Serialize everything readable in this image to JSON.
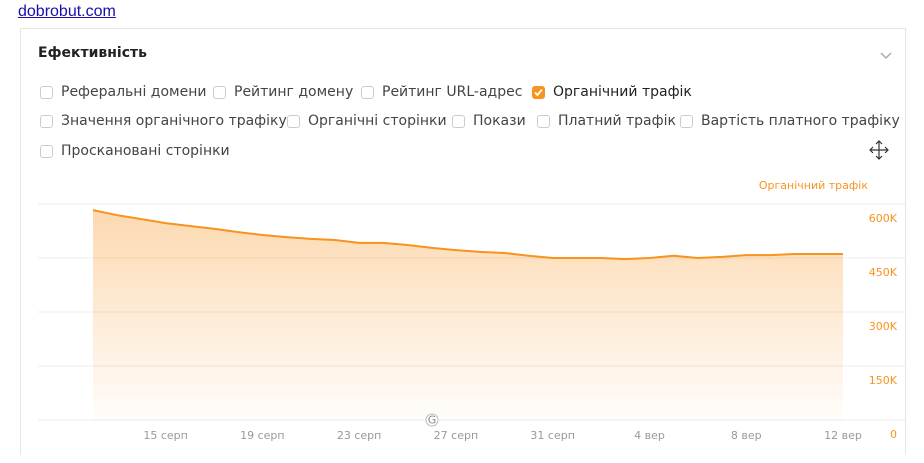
{
  "header": {
    "link": "dobrobut.com"
  },
  "panel": {
    "title": "Ефективність",
    "checkboxes": [
      {
        "label": "Реферальні домени",
        "checked": false
      },
      {
        "label": "Рейтинг домену",
        "checked": false
      },
      {
        "label": "Рейтинг URL-адрес",
        "checked": false
      },
      {
        "label": "Органічний трафік",
        "checked": true
      },
      {
        "label": "Значення органічного трафіку",
        "checked": false
      },
      {
        "label": "Органічні сторінки",
        "checked": false
      },
      {
        "label": "Покази",
        "checked": false
      },
      {
        "label": "Платний трафік",
        "checked": false
      },
      {
        "label": "Вартість платного трафіку",
        "checked": false
      },
      {
        "label": "Проскановані сторінки",
        "checked": false
      }
    ]
  },
  "chart_data": {
    "type": "area",
    "categories": [
      null,
      null,
      null,
      "15 серп",
      null,
      null,
      null,
      "19 серп",
      null,
      null,
      null,
      "23 серп",
      null,
      null,
      null,
      "27 серп",
      null,
      null,
      null,
      "31 серп",
      null,
      null,
      null,
      "4 вер",
      null,
      null,
      null,
      "8 вер",
      null,
      null,
      null,
      "12 вер"
    ],
    "series": [
      {
        "name": "Органічний трафік",
        "color": "#f7931e",
        "values": [
          583000,
          569000,
          558000,
          547000,
          539000,
          531000,
          522000,
          514000,
          508000,
          503000,
          500000,
          492000,
          492000,
          486000,
          478000,
          472000,
          467000,
          464000,
          456000,
          450000,
          450000,
          450000,
          447000,
          450000,
          456000,
          450000,
          453000,
          458000,
          458000,
          461000,
          461000,
          461000
        ]
      }
    ],
    "ylim": [
      0,
      600000
    ],
    "yticks": [
      0,
      {
        "value": 150000,
        "label": "150K"
      },
      {
        "value": 300000,
        "label": "300K"
      },
      {
        "value": 450000,
        "label": "450K"
      },
      {
        "value": 600000,
        "label": "600K"
      }
    ],
    "grid": true,
    "marker": "G"
  }
}
